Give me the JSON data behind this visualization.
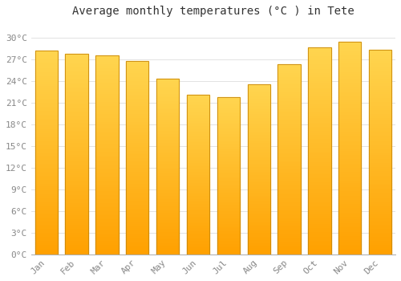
{
  "title": "Average monthly temperatures (°C ) in Tete",
  "months": [
    "Jan",
    "Feb",
    "Mar",
    "Apr",
    "May",
    "Jun",
    "Jul",
    "Aug",
    "Sep",
    "Oct",
    "Nov",
    "Dec"
  ],
  "values": [
    28.2,
    27.8,
    27.6,
    26.8,
    24.3,
    22.1,
    21.8,
    23.5,
    26.3,
    28.7,
    29.5,
    28.3
  ],
  "bar_color_top": "#FFD54F",
  "bar_color_bottom": "#FFA000",
  "bar_edge_color": "#C8870A",
  "background_color": "#FFFFFF",
  "grid_color": "#DDDDDD",
  "ylim": [
    0,
    32
  ],
  "yticks": [
    0,
    3,
    6,
    9,
    12,
    15,
    18,
    21,
    24,
    27,
    30
  ],
  "ytick_labels": [
    "0°C",
    "3°C",
    "6°C",
    "9°C",
    "12°C",
    "15°C",
    "18°C",
    "21°C",
    "24°C",
    "27°C",
    "30°C"
  ],
  "title_fontsize": 10,
  "tick_fontsize": 8,
  "tick_color": "#888888",
  "bar_width": 0.75
}
